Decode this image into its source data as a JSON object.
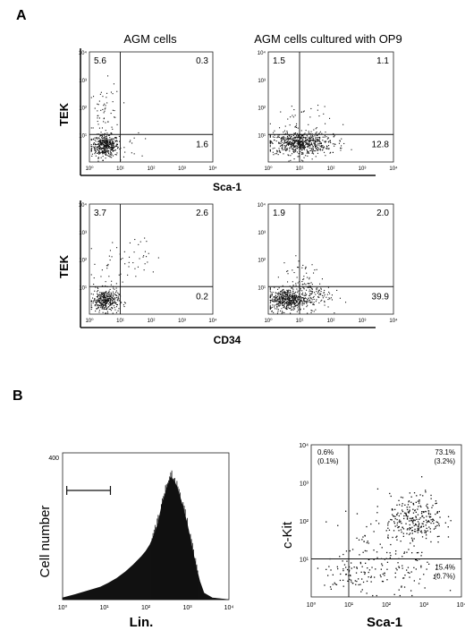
{
  "panelA": {
    "label": "A",
    "col_titles": [
      "AGM cells",
      "AGM cells cultured with OP9"
    ],
    "row_xlabels": [
      "Sca-1",
      "CD34"
    ],
    "ylabel": "TEK",
    "tick_labels": [
      "10⁰",
      "10¹",
      "10²",
      "10³",
      "10⁴"
    ]
  },
  "panelB": {
    "label": "B",
    "hist_ylabel": "Cell number",
    "hist_xlabel": "Lin.",
    "hist_ytick_top": "400",
    "scatter_ylabel": "c-Kit",
    "scatter_xlabel": "Sca-1",
    "tick_labels": [
      "10⁰",
      "10¹",
      "10²",
      "10³",
      "10⁴"
    ]
  },
  "chart_data": [
    {
      "type": "scatter",
      "id": "A1",
      "xlabel": "",
      "ylabel": "TEK",
      "xlim": [
        0,
        4
      ],
      "ylim": [
        0,
        4
      ],
      "scale": "log",
      "gates": {
        "x": 1.0,
        "y": 1.0
      },
      "quadrants": {
        "ul": "5.6",
        "ur": "0.3",
        "lr": "1.6"
      }
    },
    {
      "type": "scatter",
      "id": "A2",
      "xlabel": "",
      "ylabel": "",
      "xlim": [
        0,
        4
      ],
      "ylim": [
        0,
        4
      ],
      "scale": "log",
      "gates": {
        "x": 1.0,
        "y": 1.0
      },
      "quadrants": {
        "ul": "1.5",
        "ur": "1.1",
        "lr": "12.8"
      }
    },
    {
      "type": "scatter",
      "id": "A3",
      "xlabel": "",
      "ylabel": "TEK",
      "xlim": [
        0,
        4
      ],
      "ylim": [
        0,
        4
      ],
      "scale": "log",
      "gates": {
        "x": 1.0,
        "y": 1.0
      },
      "quadrants": {
        "ul": "3.7",
        "ur": "2.6",
        "lr": "0.2"
      }
    },
    {
      "type": "scatter",
      "id": "A4",
      "xlabel": "",
      "ylabel": "",
      "xlim": [
        0,
        4
      ],
      "ylim": [
        0,
        4
      ],
      "scale": "log",
      "gates": {
        "x": 1.0,
        "y": 1.0
      },
      "quadrants": {
        "ul": "1.9",
        "ur": "2.0",
        "lr": "39.9"
      }
    },
    {
      "type": "area",
      "id": "B1",
      "xlabel": "Lin.",
      "ylabel": "Cell number",
      "xlim": [
        0,
        4
      ],
      "ylim": [
        0,
        400
      ],
      "scale": "log-x",
      "gate_range": [
        0.1,
        1.15
      ],
      "x": [
        0.0,
        0.3,
        0.6,
        0.9,
        1.1,
        1.3,
        1.5,
        1.7,
        1.9,
        2.0,
        2.1,
        2.2,
        2.3,
        2.4,
        2.5,
        2.6,
        2.7,
        2.8,
        2.9,
        3.0,
        3.1,
        3.2,
        3.3,
        3.4,
        3.6,
        4.0
      ],
      "values": [
        5,
        14,
        24,
        34,
        45,
        58,
        75,
        95,
        118,
        132,
        150,
        175,
        210,
        265,
        300,
        335,
        320,
        290,
        250,
        205,
        150,
        95,
        50,
        18,
        5,
        0
      ]
    },
    {
      "type": "scatter",
      "id": "B2",
      "xlabel": "Sca-1",
      "ylabel": "c-Kit",
      "xlim": [
        0,
        4
      ],
      "ylim": [
        0,
        4
      ],
      "scale": "log",
      "gates": {
        "x": 1.0,
        "y": 1.0
      },
      "quadrants": {
        "ul": "0.6%",
        "ul2": "(0.1%)",
        "ur": "73.1%",
        "ur2": "(3.2%)",
        "lr": "15.4%",
        "lr2": "(0.7%)"
      }
    }
  ]
}
